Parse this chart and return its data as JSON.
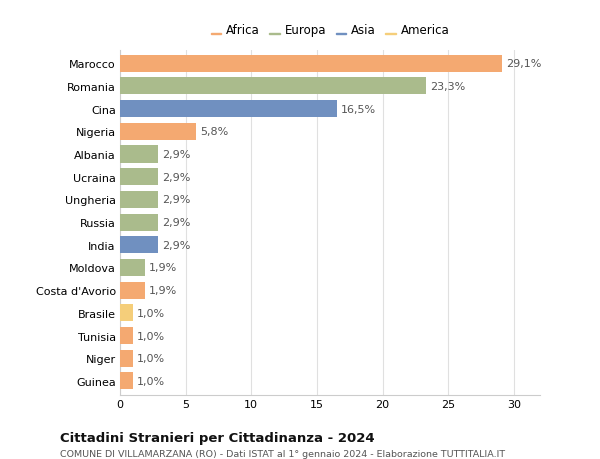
{
  "countries": [
    "Marocco",
    "Romania",
    "Cina",
    "Nigeria",
    "Albania",
    "Ucraina",
    "Ungheria",
    "Russia",
    "India",
    "Moldova",
    "Costa d'Avorio",
    "Brasile",
    "Tunisia",
    "Niger",
    "Guinea"
  ],
  "values": [
    29.1,
    23.3,
    16.5,
    5.8,
    2.9,
    2.9,
    2.9,
    2.9,
    2.9,
    1.9,
    1.9,
    1.0,
    1.0,
    1.0,
    1.0
  ],
  "labels": [
    "29,1%",
    "23,3%",
    "16,5%",
    "5,8%",
    "2,9%",
    "2,9%",
    "2,9%",
    "2,9%",
    "2,9%",
    "1,9%",
    "1,9%",
    "1,0%",
    "1,0%",
    "1,0%",
    "1,0%"
  ],
  "continents": [
    "Africa",
    "Europa",
    "Asia",
    "Africa",
    "Europa",
    "Europa",
    "Europa",
    "Europa",
    "Asia",
    "Europa",
    "Africa",
    "America",
    "Africa",
    "Africa",
    "Africa"
  ],
  "colors": {
    "Africa": "#F4A971",
    "Europa": "#AABB8C",
    "Asia": "#7090C0",
    "America": "#F5CE7A"
  },
  "legend_order": [
    "Africa",
    "Europa",
    "Asia",
    "America"
  ],
  "title": "Cittadini Stranieri per Cittadinanza - 2024",
  "subtitle": "COMUNE DI VILLAMARZANA (RO) - Dati ISTAT al 1° gennaio 2024 - Elaborazione TUTTITALIA.IT",
  "xlabel_ticks": [
    0,
    5,
    10,
    15,
    20,
    25,
    30
  ],
  "xlim": [
    0,
    32
  ],
  "bg_color": "#ffffff",
  "grid_color": "#e0e0e0",
  "bar_height": 0.75,
  "label_fontsize": 8,
  "tick_fontsize": 8,
  "legend_fontsize": 8.5
}
